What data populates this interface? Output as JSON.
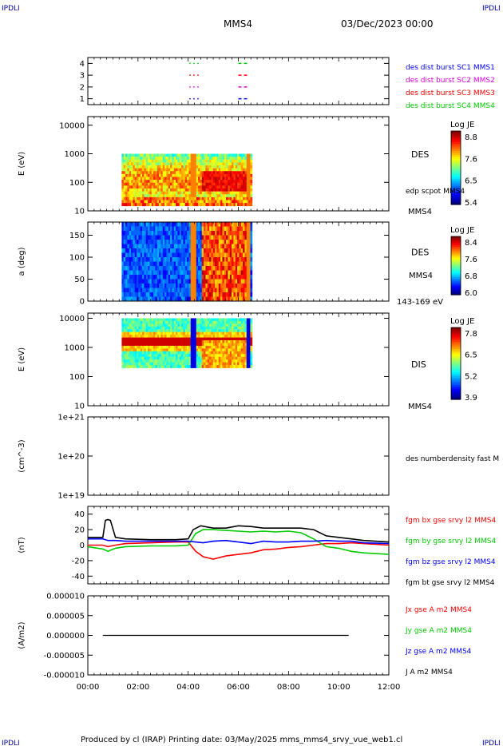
{
  "header": {
    "corner_tl": "IPDLI",
    "corner_tr": "IPDLI",
    "corner_bl": "IPDLI",
    "corner_br": "IPDLI",
    "spacecraft": "MMS4",
    "date": "03/Dec/2023 00:00",
    "footer": "Produced by cl (IRAP)   Printing date: 03/May/2025   mms_mms4_srvy_vue_web1.cl"
  },
  "colors": {
    "mms1": "#0000ff",
    "mms2": "#e000e0",
    "mms3": "#ff0000",
    "mms4": "#00cc00",
    "bx": "#ff0000",
    "by": "#00cc00",
    "bz": "#0000ff",
    "bt": "#000000",
    "corner": "#0000aa"
  },
  "chart_data": [
    {
      "id": "burst",
      "type": "scatter",
      "ylabel": "",
      "ylim": [
        0.5,
        4.5
      ],
      "yticks": [
        "1",
        "2",
        "3",
        "4"
      ],
      "x_range": [
        "00:00",
        "12:00"
      ],
      "legend": [
        {
          "label": "des dist burst SC1 MMS1",
          "color": "#0000ff"
        },
        {
          "label": "des dist burst SC2 MMS2",
          "color": "#e000e0"
        },
        {
          "label": "des dist burst SC3 MMS3",
          "color": "#ff0000"
        },
        {
          "label": "des dist burst SC4 MMS4",
          "color": "#00cc00"
        }
      ],
      "series": [
        {
          "sc": 1,
          "segments": [
            [
              4.05,
              4.5
            ],
            [
              6.0,
              6.4
            ]
          ]
        },
        {
          "sc": 2,
          "segments": [
            [
              4.05,
              4.5
            ],
            [
              6.0,
              6.4
            ]
          ]
        },
        {
          "sc": 3,
          "segments": [
            [
              4.05,
              4.5
            ],
            [
              6.0,
              6.4
            ]
          ]
        },
        {
          "sc": 4,
          "segments": [
            [
              4.05,
              4.5
            ],
            [
              6.0,
              6.4
            ]
          ]
        }
      ]
    },
    {
      "id": "des_energy",
      "type": "heatmap",
      "ylabel": "E (eV)",
      "yscale": "log",
      "ylim": [
        10,
        20000
      ],
      "yticks": [
        "10",
        "100",
        "1000",
        "10000"
      ],
      "data_x_range": [
        1.35,
        6.55
      ],
      "data_y_range": [
        15,
        1000
      ],
      "label": "DES",
      "sublabel": "edp scpot MMS4",
      "bottom_label": "MMS4",
      "colorbar": {
        "title": "Log JE",
        "ticks": [
          "8.8",
          "7.6",
          "6.5",
          "5.4"
        ]
      }
    },
    {
      "id": "des_pitch",
      "type": "heatmap",
      "ylabel": "a (deg)",
      "ylim": [
        0,
        180
      ],
      "yticks": [
        "0",
        "50",
        "100",
        "150"
      ],
      "data_x_range": [
        1.35,
        6.55
      ],
      "label": "DES",
      "sublabel": "MMS4",
      "bottom_label": "143-169 eV",
      "colorbar": {
        "title": "Log JE",
        "ticks": [
          "8.4",
          "7.6",
          "6.8",
          "6.0"
        ]
      }
    },
    {
      "id": "dis_energy",
      "type": "heatmap",
      "ylabel": "E (eV)",
      "yscale": "log",
      "ylim": [
        10,
        15000
      ],
      "yticks": [
        "10",
        "100",
        "1000",
        "10000"
      ],
      "data_x_range": [
        1.35,
        6.55
      ],
      "data_y_range": [
        200,
        10000
      ],
      "label": "DIS",
      "bottom_label": "MMS4",
      "colorbar": {
        "title": "Log JE",
        "ticks": [
          "7.8",
          "6.5",
          "5.2",
          "3.9"
        ]
      }
    },
    {
      "id": "density",
      "type": "line",
      "ylabel": "(cm^-3)",
      "yscale": "log",
      "ylim": [
        1e+19,
        1e+21
      ],
      "yticks": [
        "1e+19",
        "1e+20",
        "1e+21"
      ],
      "legend": [
        {
          "label": "des numberdensity fast M",
          "color": "#000000"
        }
      ]
    },
    {
      "id": "fgm",
      "type": "line",
      "ylabel": "(nT)",
      "ylim": [
        -50,
        50
      ],
      "yticks": [
        "-40",
        "-20",
        "0",
        "20",
        "40"
      ],
      "legend": [
        {
          "label": "fgm bx gse srvy l2 MMS4",
          "color": "#ff0000"
        },
        {
          "label": "fgm by gse srvy l2 MMS4",
          "color": "#00cc00"
        },
        {
          "label": "fgm bz gse srvy l2 MMS4",
          "color": "#0000ff"
        },
        {
          "label": "fgm bt gse srvy l2 MMS4",
          "color": "#000000"
        }
      ],
      "series": [
        {
          "name": "bt",
          "color": "#000000",
          "x": [
            0.0,
            0.6,
            0.7,
            0.8,
            0.9,
            1.1,
            1.5,
            2.5,
            3.5,
            4.0,
            4.2,
            4.5,
            5.0,
            5.5,
            6.0,
            6.5,
            7.0,
            7.5,
            8.0,
            8.5,
            9.0,
            9.5,
            10.0,
            10.5,
            11.0,
            12.0
          ],
          "values": [
            10,
            10,
            32,
            33,
            32,
            10,
            8,
            7,
            7,
            8,
            20,
            25,
            22,
            22,
            25,
            24,
            22,
            22,
            22,
            22,
            20,
            12,
            10,
            8,
            6,
            4
          ]
        },
        {
          "name": "bx",
          "color": "#ff0000",
          "x": [
            0.0,
            0.6,
            0.8,
            1.1,
            1.5,
            2.5,
            3.5,
            4.0,
            4.3,
            4.6,
            5.0,
            5.5,
            6.0,
            6.5,
            7.0,
            7.5,
            8.0,
            8.5,
            9.0,
            9.5,
            10.0,
            10.5,
            11.0,
            12.0
          ],
          "values": [
            0,
            0,
            -2,
            0,
            2,
            3,
            4,
            4,
            -8,
            -15,
            -18,
            -14,
            -12,
            -10,
            -6,
            -5,
            -3,
            -2,
            0,
            2,
            2,
            3,
            2,
            0
          ]
        },
        {
          "name": "by",
          "color": "#00cc00",
          "x": [
            0.0,
            0.6,
            0.8,
            1.1,
            1.5,
            2.5,
            3.5,
            4.0,
            4.3,
            4.6,
            5.0,
            5.5,
            6.0,
            6.5,
            7.0,
            7.5,
            8.0,
            8.5,
            9.0,
            9.5,
            10.0,
            10.5,
            11.0,
            12.0
          ],
          "values": [
            -2,
            -5,
            -8,
            -4,
            -2,
            -1,
            -1,
            0,
            15,
            20,
            20,
            19,
            18,
            17,
            18,
            17,
            18,
            16,
            8,
            -2,
            -4,
            -8,
            -10,
            -12
          ]
        },
        {
          "name": "bz",
          "color": "#0000ff",
          "x": [
            0.0,
            0.6,
            0.8,
            1.1,
            1.5,
            2.5,
            3.5,
            4.0,
            4.3,
            4.6,
            5.0,
            5.5,
            6.0,
            6.5,
            7.0,
            7.5,
            8.0,
            8.5,
            9.0,
            9.5,
            10.0,
            10.5,
            11.0,
            12.0
          ],
          "values": [
            8,
            8,
            6,
            6,
            5,
            5,
            5,
            5,
            4,
            3,
            5,
            6,
            4,
            2,
            5,
            4,
            4,
            5,
            5,
            6,
            5,
            5,
            3,
            2
          ]
        }
      ]
    },
    {
      "id": "current",
      "type": "line",
      "ylabel": "(A/m2)",
      "ylim": [
        -1e-05,
        1e-05
      ],
      "yticks": [
        "-0.000010",
        "-0.000005",
        "0.000000",
        "0.000005",
        "0.000010"
      ],
      "xticks": [
        "00:00",
        "02:00",
        "04:00",
        "06:00",
        "08:00",
        "10:00",
        "12:00"
      ],
      "legend": [
        {
          "label": "Jx gse A m2 MMS4",
          "color": "#ff0000"
        },
        {
          "label": "Jy gse A m2 MMS4",
          "color": "#00cc00"
        },
        {
          "label": "Jz gse A m2 MMS4",
          "color": "#0000ff"
        },
        {
          "label": "J A m2 MMS4",
          "color": "#000000"
        }
      ],
      "series": [
        {
          "name": "J",
          "color": "#000000",
          "x": [
            0.6,
            10.4
          ],
          "values": [
            0,
            0
          ]
        }
      ]
    }
  ]
}
